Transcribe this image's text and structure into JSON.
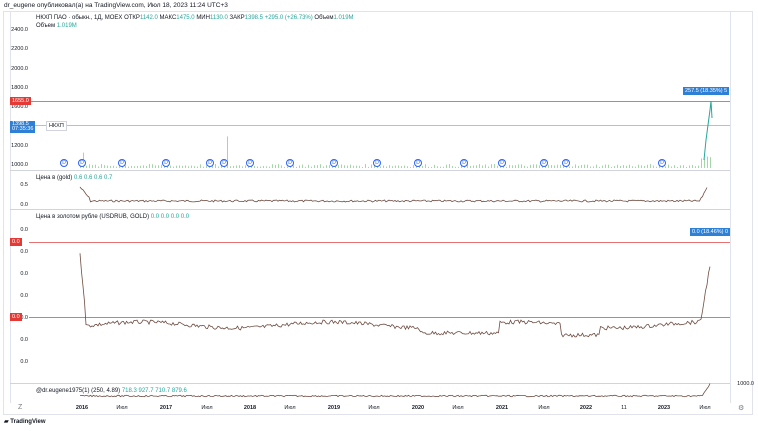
{
  "header": {
    "author_line": "dr_eugene опубликовал(а) на TradingView.com, Июл 18, 2023 11:24 UTC+3"
  },
  "pane1": {
    "legend_symbol": "НКХП ПАО · обыкн., 1Д, MOEX",
    "legend_o_label": "ОТКР",
    "legend_o": "1142.0",
    "legend_h_label": "МАКС",
    "legend_h": "1475.0",
    "legend_l_label": "МИН",
    "legend_l": "1130.0",
    "legend_c_label": "ЗАКР",
    "legend_c": "1398.5",
    "legend_change": "+295.0 (+26.73%)",
    "legend_vol_label": "Объем",
    "legend_vol": "1.019M",
    "vol_label": "Объем",
    "vol_value": "1.019M",
    "yticks": [
      "2400.0",
      "2200.0",
      "2000.0",
      "1800.0",
      "1600.0",
      "1400.0",
      "1200.0",
      "1000.0"
    ],
    "red_line_tag": "1655.0",
    "price_tag": "1398.5",
    "price_tag_time": "07:35:36",
    "symbol_tag": "НКХП",
    "measure_tag": "257.5 (18.35%) 5",
    "dividend_marker": "D"
  },
  "pane2": {
    "legend_title": "Цена в (gold)",
    "legend_values": "0.6  0.6  0.6  0.7",
    "yticks": [
      "0.5",
      "0.0"
    ]
  },
  "pane3": {
    "legend_title": "Цена в золотом рубле (USDRUB, GOLD)",
    "legend_values": "0.0  0.0  0.0  0.0",
    "yticks": [
      "0.0",
      "0.0",
      "0.0",
      "0.0",
      "0.0",
      "0.0",
      "0.0"
    ],
    "red_tag_top": "0.0",
    "red_tag_mid": "0.0",
    "measure_tag": "0.0 (18.46%) 0"
  },
  "pane4": {
    "legend_title": "@dr.eugene1975(1) (250, 4.89)",
    "legend_values": "718.3  927.7  710.7  879.6",
    "ytick": "1000.0"
  },
  "xaxis": {
    "labels": [
      "2016",
      "Июл",
      "2017",
      "Июл",
      "2018",
      "Июл",
      "2019",
      "Июл",
      "2020",
      "Июл",
      "2021",
      "Июл",
      "2022",
      "11",
      "2023",
      "Июл"
    ],
    "bold": [
      true,
      false,
      true,
      false,
      true,
      false,
      true,
      false,
      true,
      false,
      true,
      false,
      true,
      false,
      true,
      false
    ]
  },
  "footer": {
    "brand": "TradingView"
  },
  "colors": {
    "red_line": "#e53935",
    "blue_tag": "#2e7fd6",
    "candle": "#6d4c41",
    "volume_green": "#26a69a"
  }
}
